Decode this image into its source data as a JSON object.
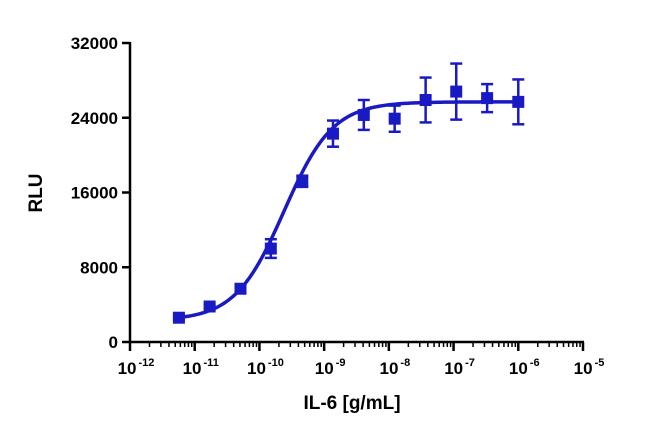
{
  "chart_data": {
    "type": "scatter",
    "xlabel": "IL-6 [g/mL]",
    "ylabel": "RLU",
    "x_scale": "log",
    "xlim": [
      1e-12,
      1e-05
    ],
    "ylim": [
      0,
      32000
    ],
    "x_ticks": [
      {
        "value": 1e-12,
        "base": "10",
        "exp": "-12"
      },
      {
        "value": 1e-11,
        "base": "10",
        "exp": "-11"
      },
      {
        "value": 1e-10,
        "base": "10",
        "exp": "-10"
      },
      {
        "value": 1e-09,
        "base": "10",
        "exp": "-9"
      },
      {
        "value": 1e-08,
        "base": "10",
        "exp": "-8"
      },
      {
        "value": 1e-07,
        "base": "10",
        "exp": "-7"
      },
      {
        "value": 1e-06,
        "base": "10",
        "exp": "-6"
      },
      {
        "value": 1e-05,
        "base": "10",
        "exp": "-5"
      }
    ],
    "y_ticks": [
      {
        "value": 0,
        "label": "0"
      },
      {
        "value": 8000,
        "label": "8000"
      },
      {
        "value": 16000,
        "label": "16000"
      },
      {
        "value": 24000,
        "label": "24000"
      },
      {
        "value": 32000,
        "label": "32000"
      }
    ],
    "grid": false,
    "series": [
      {
        "color": "#1a1ac4",
        "marker": "square",
        "points": [
          {
            "x": 5.7e-12,
            "y": 2600,
            "err": 200
          },
          {
            "x": 1.7e-11,
            "y": 3800,
            "err": 200
          },
          {
            "x": 5.1e-11,
            "y": 5700,
            "err": 300
          },
          {
            "x": 1.5e-10,
            "y": 10000,
            "err": 1000
          },
          {
            "x": 4.6e-10,
            "y": 17200,
            "err": 600
          },
          {
            "x": 1.37e-09,
            "y": 22300,
            "err": 1400
          },
          {
            "x": 4.1e-09,
            "y": 24300,
            "err": 1600
          },
          {
            "x": 1.23e-08,
            "y": 23900,
            "err": 1400
          },
          {
            "x": 3.7e-08,
            "y": 25900,
            "err": 2400
          },
          {
            "x": 1.1e-07,
            "y": 26800,
            "err": 3000
          },
          {
            "x": 3.3e-07,
            "y": 26100,
            "err": 1500
          },
          {
            "x": 1e-06,
            "y": 25700,
            "err": 2400
          }
        ],
        "fit": {
          "model": "4PL",
          "bottom": 2300,
          "top": 25700,
          "log_ec50": -9.62,
          "hill": 1.15
        }
      }
    ]
  }
}
